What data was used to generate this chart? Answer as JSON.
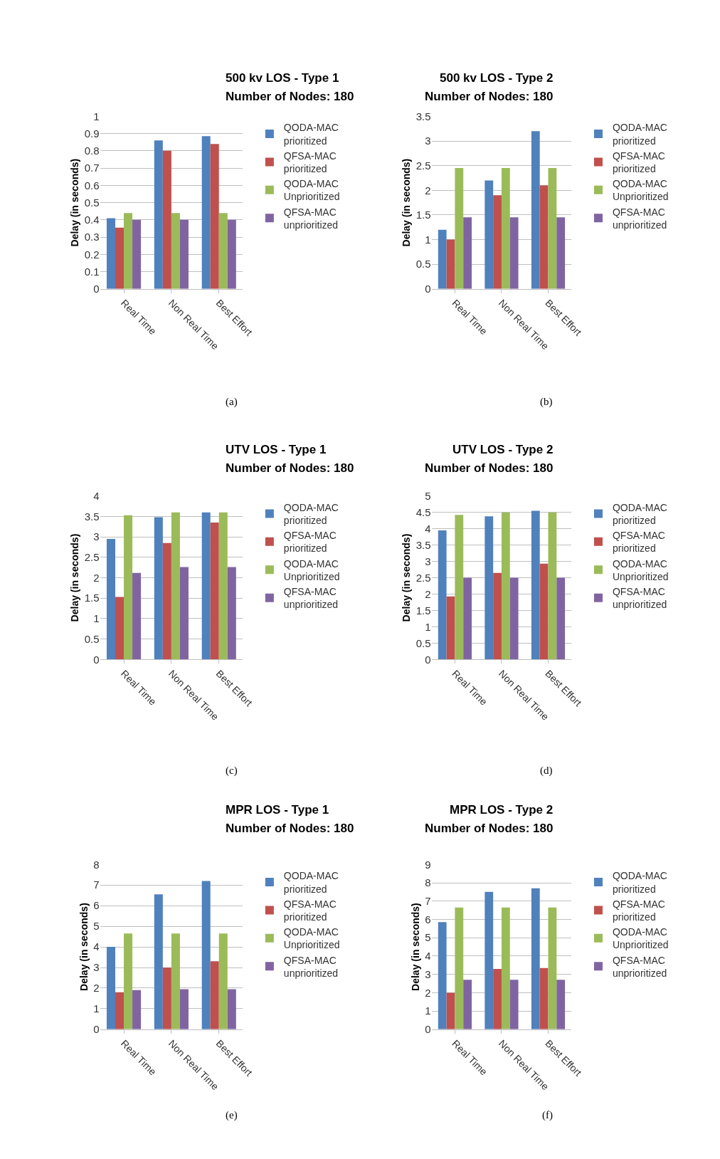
{
  "chart_data": [
    {
      "type": "bar",
      "title": "500 kv LOS - Type 1",
      "subtitle": "Number of Nodes: 180",
      "ylabel": "Delay (in seconds)",
      "categories": [
        "Real Time",
        "Non Real Time",
        "Best Effort"
      ],
      "series": [
        {
          "name": "QODA-MAC prioritized",
          "color": "#4f81bd",
          "values": [
            0.41,
            0.86,
            0.885
          ]
        },
        {
          "name": "QFSA-MAC prioritized",
          "color": "#c0504d",
          "values": [
            0.355,
            0.8,
            0.84
          ]
        },
        {
          "name": "QODA-MAC Unprioritized",
          "color": "#9bbb59",
          "values": [
            0.44,
            0.44,
            0.44
          ]
        },
        {
          "name": "QFSA-MAC unprioritized",
          "color": "#8064a2",
          "values": [
            0.4,
            0.4,
            0.4
          ]
        }
      ],
      "ylim": [
        0,
        1
      ],
      "yticks": [
        0,
        0.1,
        0.2,
        0.3,
        0.4,
        0.5,
        0.6,
        0.7,
        0.8,
        0.9,
        1
      ],
      "grid": "y",
      "legend": "right",
      "annotations": [
        "(a)"
      ]
    },
    {
      "type": "bar",
      "title": "500 kv LOS - Type 2",
      "subtitle": "Number of Nodes: 180",
      "ylabel": "Delay (in seconds)",
      "categories": [
        "Real Time",
        "Non Real Time",
        "Best Effort"
      ],
      "series": [
        {
          "name": "QODA-MAC prioritized",
          "color": "#4f81bd",
          "values": [
            1.2,
            2.2,
            3.2
          ]
        },
        {
          "name": "QFSA-MAC prioritized",
          "color": "#c0504d",
          "values": [
            1.0,
            1.9,
            2.1
          ]
        },
        {
          "name": "QODA-MAC Unprioritized",
          "color": "#9bbb59",
          "values": [
            2.45,
            2.45,
            2.45
          ]
        },
        {
          "name": "QFSA-MAC unprioritized",
          "color": "#8064a2",
          "values": [
            1.45,
            1.45,
            1.45
          ]
        }
      ],
      "ylim": [
        0,
        3.5
      ],
      "yticks": [
        0,
        0.5,
        1,
        1.5,
        2,
        2.5,
        3,
        3.5
      ],
      "grid": "y",
      "legend": "right",
      "annotations": [
        "(b)"
      ]
    },
    {
      "type": "bar",
      "title": "UTV LOS - Type 1",
      "subtitle": "Number of Nodes: 180",
      "ylabel": "Delay (in seconds)",
      "categories": [
        "Real Time",
        "Non Real Time",
        "Best Effort"
      ],
      "series": [
        {
          "name": "QODA-MAC prioritized",
          "color": "#4f81bd",
          "values": [
            2.95,
            3.48,
            3.6
          ]
        },
        {
          "name": "QFSA-MAC prioritized",
          "color": "#c0504d",
          "values": [
            1.53,
            2.85,
            3.35
          ]
        },
        {
          "name": "QODA-MAC Unprioritized",
          "color": "#9bbb59",
          "values": [
            3.53,
            3.6,
            3.6
          ]
        },
        {
          "name": "QFSA-MAC unprioritized",
          "color": "#8064a2",
          "values": [
            2.12,
            2.26,
            2.26
          ]
        }
      ],
      "ylim": [
        0,
        4
      ],
      "yticks": [
        0,
        0.5,
        1,
        1.5,
        2,
        2.5,
        3,
        3.5,
        4
      ],
      "grid": "y",
      "legend": "right",
      "annotations": [
        "(c)"
      ]
    },
    {
      "type": "bar",
      "title": "UTV LOS - Type 2",
      "subtitle": "Number of Nodes: 180",
      "ylabel": "Delay (in seconds)",
      "categories": [
        "Real Time",
        "Non Real Time",
        "Best Effort"
      ],
      "series": [
        {
          "name": "QODA-MAC prioritized",
          "color": "#4f81bd",
          "values": [
            3.95,
            4.38,
            4.55
          ]
        },
        {
          "name": "QFSA-MAC prioritized",
          "color": "#c0504d",
          "values": [
            1.93,
            2.65,
            2.93
          ]
        },
        {
          "name": "QODA-MAC Unprioritized",
          "color": "#9bbb59",
          "values": [
            4.42,
            4.5,
            4.5
          ]
        },
        {
          "name": "QFSA-MAC unprioritized",
          "color": "#8064a2",
          "values": [
            2.5,
            2.5,
            2.5
          ]
        }
      ],
      "ylim": [
        0,
        5
      ],
      "yticks": [
        0,
        0.5,
        1,
        1.5,
        2,
        2.5,
        3,
        3.5,
        4,
        4.5,
        5
      ],
      "grid": "y",
      "legend": "right",
      "annotations": [
        "(d)"
      ]
    },
    {
      "type": "bar",
      "title": "MPR LOS - Type 1",
      "subtitle": "Number of Nodes: 180",
      "ylabel": "Delay (in seconds)",
      "categories": [
        "Real Time",
        "Non Real Time",
        "Best Effort"
      ],
      "series": [
        {
          "name": "QODA-MAC prioritized",
          "color": "#4f81bd",
          "values": [
            4.0,
            6.55,
            7.2
          ]
        },
        {
          "name": "QFSA-MAC prioritized",
          "color": "#c0504d",
          "values": [
            1.8,
            3.0,
            3.3
          ]
        },
        {
          "name": "QODA-MAC Unprioritized",
          "color": "#9bbb59",
          "values": [
            4.65,
            4.65,
            4.65
          ]
        },
        {
          "name": "QFSA-MAC unprioritized",
          "color": "#8064a2",
          "values": [
            1.9,
            1.95,
            1.95
          ]
        }
      ],
      "ylim": [
        0,
        8
      ],
      "yticks": [
        0,
        1,
        2,
        3,
        4,
        5,
        6,
        7,
        8
      ],
      "grid": "y",
      "legend": "right",
      "annotations": [
        "(e)"
      ]
    },
    {
      "type": "bar",
      "title": "MPR LOS - Type 2",
      "subtitle": "Number of Nodes: 180",
      "ylabel": "Delay (in seconds)",
      "categories": [
        "Real Time",
        "Non Real Time",
        "Best Effort"
      ],
      "series": [
        {
          "name": "QODA-MAC prioritized",
          "color": "#4f81bd",
          "values": [
            5.85,
            7.5,
            7.7
          ]
        },
        {
          "name": "QFSA-MAC prioritized",
          "color": "#c0504d",
          "values": [
            2.0,
            3.3,
            3.35
          ]
        },
        {
          "name": "QODA-MAC Unprioritized",
          "color": "#9bbb59",
          "values": [
            6.65,
            6.65,
            6.65
          ]
        },
        {
          "name": "QFSA-MAC unprioritized",
          "color": "#8064a2",
          "values": [
            2.7,
            2.7,
            2.7
          ]
        }
      ],
      "ylim": [
        0,
        9
      ],
      "yticks": [
        0,
        1,
        2,
        3,
        4,
        5,
        6,
        7,
        8,
        9
      ],
      "grid": "y",
      "legend": "right",
      "annotations": [
        "(f)"
      ]
    }
  ]
}
